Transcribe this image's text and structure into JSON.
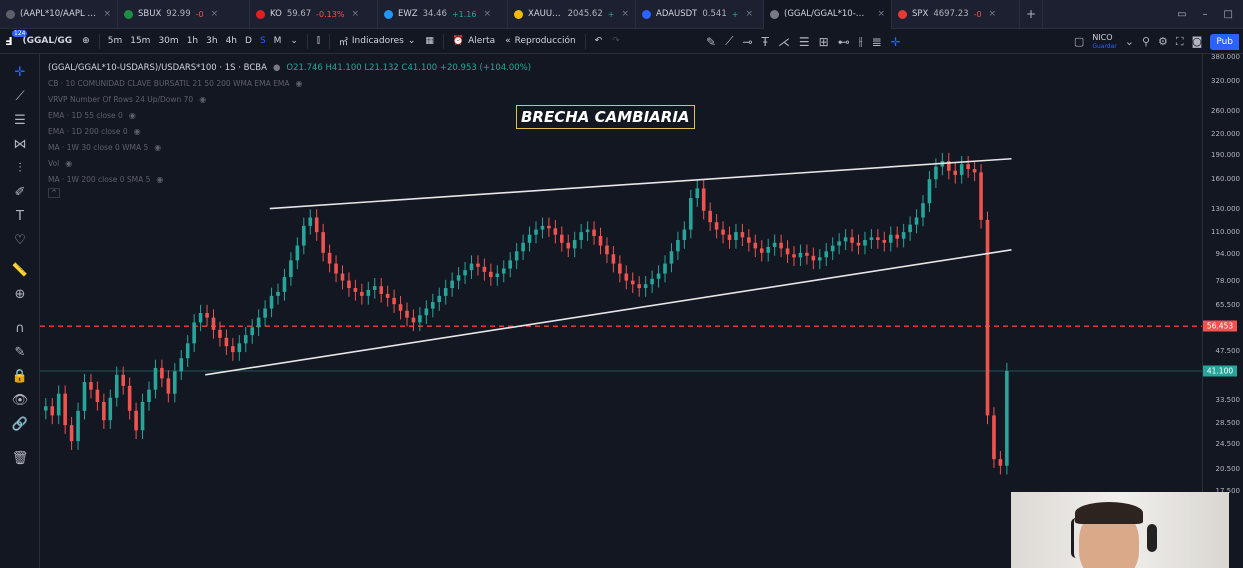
{
  "browser_tabs": [
    {
      "title": "(AAPL*10/AAPL - TSE",
      "change": "",
      "fav_color": "#5d606b",
      "active": false
    },
    {
      "title": "SBUX",
      "price": "92.99",
      "change": "-0",
      "fav_color": "#1e8c45",
      "active": false
    },
    {
      "title": "KO",
      "price": "59.67",
      "change": "-0.13%",
      "fav_color": "#e02020",
      "active": false
    },
    {
      "title": "EWZ",
      "price": "34.46",
      "change": "+1.16",
      "fav_color": "#2196f3",
      "active": false
    },
    {
      "title": "XAUUSD",
      "price": "2045.62",
      "change": "+",
      "fav_color": "#f0b90b",
      "active": false
    },
    {
      "title": "ADAUSDT",
      "price": "0.541",
      "change": "+",
      "fav_color": "#2962ff",
      "active": false
    },
    {
      "title": "(GGAL/GGAL*10-USD",
      "change": "",
      "fav_color": "#787b86",
      "active": true
    },
    {
      "title": "SPX",
      "price": "4697.23",
      "change": "-0",
      "fav_color": "#e53935",
      "active": false
    }
  ],
  "toolbar": {
    "badge": "124",
    "symbol": "(GGAL/GG",
    "timeframes": [
      "5m",
      "15m",
      "30m",
      "1h",
      "3h",
      "4h",
      "D",
      "S",
      "M"
    ],
    "selected_timeframe": "S",
    "indicators_label": "Indicadores",
    "alert_label": "Alerta",
    "replay_label": "Reproducción",
    "profile_name": "NICO",
    "profile_sub": "Guardar",
    "publish_label": "Pub"
  },
  "legend": {
    "symbol_line": "(GGAL/GGAL*10-USDARS)/USDARS*100 · 1S · BCBA",
    "ohlc": "O21.746  H41.100  L21.132  C41.100  +20.953 (+104.00%)",
    "indicators": [
      "CB · 10 COMUNIDAD CLAVE BURSATIL 21 50 200 WMA EMA EMA",
      "VRVP Number Of Rows 24 Up/Down 70",
      "EMA · 1D 55 close 0",
      "EMA · 1D 200 close 0",
      "MA · 1W 30 close 0 WMA 5",
      "Vol",
      "MA · 1W 200 close 0 SMA 5"
    ]
  },
  "annotation": {
    "text": "BRECHA CAMBIARIA",
    "border_color": "#e0c04b"
  },
  "price_axis": {
    "ticks": [
      "380.000",
      "320.000",
      "260.000",
      "220.000",
      "190.000",
      "160.000",
      "130.000",
      "110.000",
      "94.000",
      "78.000",
      "65.500",
      "56.453",
      "47.500",
      "41.100",
      "33.500",
      "28.500",
      "24.500",
      "20.500",
      "17.500"
    ],
    "red_level": "56.453",
    "current_price": "41.100"
  },
  "colors": {
    "bull": "#26a69a",
    "bear": "#ef5350",
    "background": "#131722",
    "accent": "#2962ff",
    "trendline": "#e6e6e6",
    "red_line": "#e53935"
  },
  "chart_data": {
    "type": "candlestick",
    "scale": "log",
    "ylim": [
      15,
      400
    ],
    "x_unit": "weekly candles (index)",
    "closes": [
      32,
      30,
      35,
      28,
      25,
      31,
      38,
      36,
      33,
      29,
      34,
      40,
      37,
      31,
      27,
      33,
      36,
      42,
      39,
      35,
      41,
      45,
      50,
      58,
      62,
      60,
      55,
      52,
      49,
      47,
      50,
      53,
      56,
      60,
      64,
      70,
      72,
      80,
      90,
      100,
      115,
      122,
      110,
      95,
      88,
      82,
      78,
      74,
      72,
      70,
      73,
      75,
      71,
      69,
      66,
      63,
      60,
      58,
      61,
      64,
      67,
      70,
      74,
      78,
      81,
      84,
      88,
      86,
      83,
      80,
      82,
      85,
      90,
      96,
      102,
      108,
      112,
      115,
      113,
      108,
      102,
      98,
      104,
      110,
      112,
      107,
      100,
      94,
      88,
      82,
      78,
      76,
      74,
      76,
      79,
      82,
      88,
      96,
      104,
      112,
      140,
      150,
      128,
      118,
      112,
      108,
      104,
      110,
      106,
      102,
      98,
      95,
      99,
      102,
      98,
      94,
      92,
      95,
      93,
      90,
      92,
      96,
      100,
      103,
      106,
      102,
      100,
      104,
      106,
      104,
      102,
      108,
      105,
      110,
      116,
      122,
      135,
      160,
      175,
      182,
      170,
      165,
      178,
      172,
      168,
      120,
      30,
      22,
      21,
      41.1
    ],
    "series_lines": [
      {
        "name": "upper channel",
        "from": [
          35,
          130
        ],
        "to": [
          150,
          185
        ]
      },
      {
        "name": "lower channel",
        "from": [
          25,
          40
        ],
        "to": [
          150,
          97
        ]
      }
    ],
    "horizontal_levels": [
      56.453,
      41.1
    ]
  }
}
